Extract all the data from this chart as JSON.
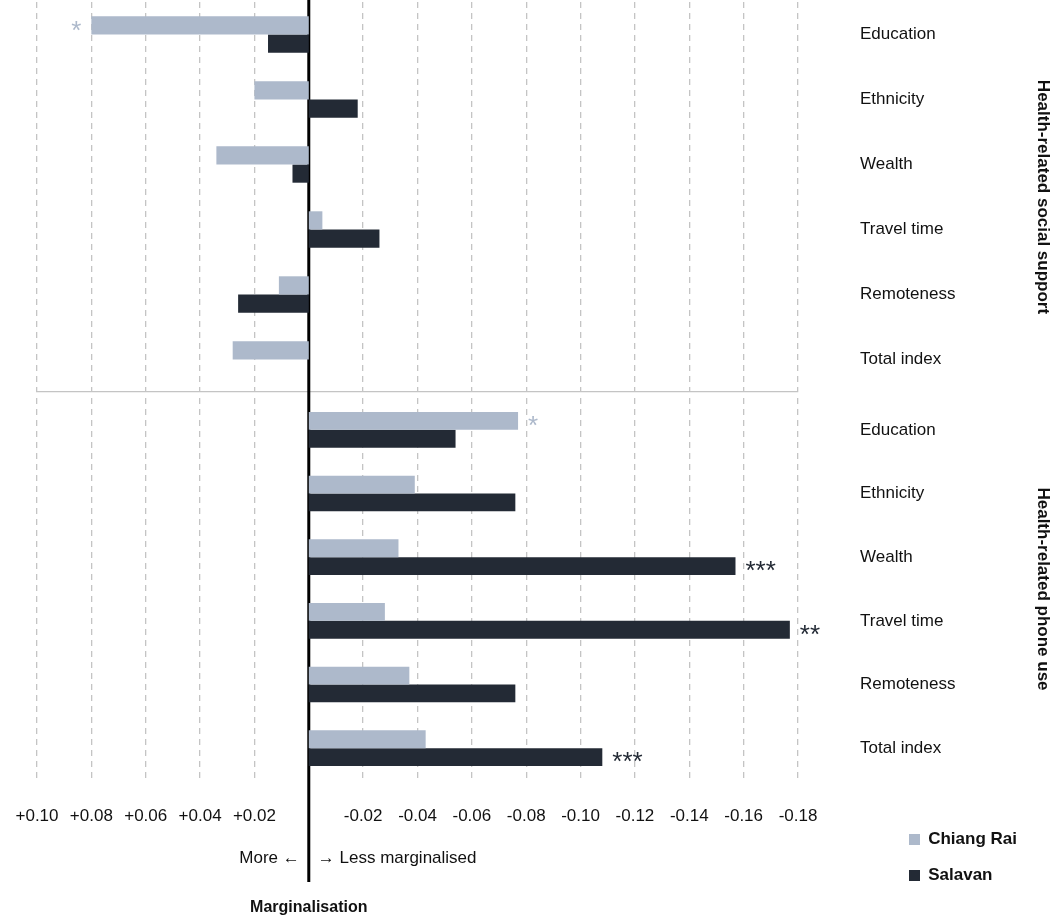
{
  "chart_data": [
    {
      "type": "bar",
      "orientation": "horizontal",
      "y2label": "Health-related social support",
      "categories": [
        "Education",
        "Ethnicity",
        "Wealth",
        "Travel time",
        "Remoteness",
        "Total index"
      ],
      "series": [
        {
          "color": "#adb9cb",
          "values": [
            0.08,
            0.02,
            0.034,
            -0.005,
            0.011,
            0.028
          ]
        },
        {
          "color": "#232a35",
          "values": [
            0.015,
            -0.018,
            0.006,
            -0.026,
            0.026,
            null
          ]
        }
      ],
      "xlim": [
        0.1,
        -0.18
      ],
      "xticks": [
        {
          "value": 0.1,
          "label": null
        },
        {
          "value": 0.08,
          "label": null
        },
        {
          "value": 0.06,
          "label": null
        },
        {
          "value": 0.04,
          "label": null
        },
        {
          "value": 0.02,
          "label": null
        },
        {
          "value": -0.02,
          "label": null
        },
        {
          "value": -0.04,
          "label": null
        },
        {
          "value": -0.06,
          "label": null
        },
        {
          "value": -0.08,
          "label": null
        },
        {
          "value": -0.1,
          "label": null
        },
        {
          "value": -0.12,
          "label": null
        },
        {
          "value": -0.14,
          "label": null
        },
        {
          "value": -0.16,
          "label": null
        },
        {
          "value": -0.18,
          "label": null
        }
      ],
      "ref_lines": [
        {
          "axis": "x",
          "value": 0,
          "color": "#000000",
          "line_style": "solid"
        }
      ],
      "grid": "x",
      "tick_labels": "y",
      "annotations": [
        {
          "text": "*",
          "x": 0.08,
          "y": "Education"
        }
      ]
    },
    {
      "type": "bar",
      "orientation": "horizontal",
      "y2label": "Health-related phone use",
      "xlabel": "Marginalisation",
      "categories": [
        "Education",
        "Ethnicity",
        "Wealth",
        "Travel time",
        "Remoteness",
        "Total index"
      ],
      "series": [
        {
          "name": "Chiang Rai",
          "color": "#adb9cb",
          "values": [
            -0.077,
            -0.039,
            -0.033,
            -0.028,
            -0.037,
            -0.043
          ]
        },
        {
          "name": "Salavan",
          "color": "#232a35",
          "values": [
            -0.054,
            -0.076,
            -0.157,
            -0.177,
            -0.076,
            -0.108
          ]
        }
      ],
      "xlim": [
        0.1,
        -0.18
      ],
      "xticks": [
        {
          "value": 0.1,
          "label": "+0.10"
        },
        {
          "value": 0.08,
          "label": "+0.08"
        },
        {
          "value": 0.06,
          "label": "+0.06"
        },
        {
          "value": 0.04,
          "label": "+0.04"
        },
        {
          "value": 0.02,
          "label": "+0.02"
        },
        {
          "value": -0.02,
          "label": "-0.02"
        },
        {
          "value": -0.04,
          "label": "-0.04"
        },
        {
          "value": -0.06,
          "label": "-0.06"
        },
        {
          "value": -0.08,
          "label": "-0.08"
        },
        {
          "value": -0.1,
          "label": "-0.10"
        },
        {
          "value": -0.12,
          "label": "-0.12"
        },
        {
          "value": -0.14,
          "label": "-0.14"
        },
        {
          "value": -0.16,
          "label": "-0.16"
        },
        {
          "value": -0.18,
          "label": "-0.18"
        }
      ],
      "ref_lines": [
        {
          "axis": "x",
          "value": 0,
          "color": "#000000",
          "line_style": "solid"
        }
      ],
      "grid": "x",
      "legend": "bottom right",
      "annotations": [
        {
          "text": "*",
          "x": -0.077,
          "y": "Education"
        },
        {
          "text": "***",
          "x": -0.157,
          "y": "Wealth"
        },
        {
          "text": "**",
          "x": -0.177,
          "y": "Travel time"
        },
        {
          "text": "***",
          "x": -0.108,
          "y": "Total index"
        },
        "More ←",
        "→ Less marginalised"
      ]
    }
  ]
}
